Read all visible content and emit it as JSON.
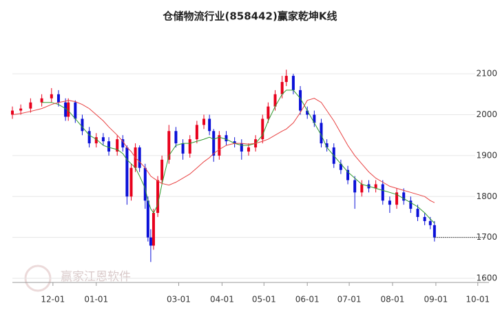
{
  "chart_data": {
    "type": "candlestick",
    "title": "仓储物流行业(858442)赢家乾坤K线",
    "watermark": "赢家江恩软件",
    "xlim": [
      1,
      342
    ],
    "xticks": [
      {
        "value": 30,
        "label": "12-01"
      },
      {
        "value": 61,
        "label": "01-01"
      },
      {
        "value": 120,
        "label": "03-01"
      },
      {
        "value": 151,
        "label": "04-01"
      },
      {
        "value": 181,
        "label": "05-01"
      },
      {
        "value": 212,
        "label": "06-01"
      },
      {
        "value": 242,
        "label": "07-01"
      },
      {
        "value": 273,
        "label": "08-01"
      },
      {
        "value": 304,
        "label": "09-01"
      },
      {
        "value": 334,
        "label": "10-01"
      }
    ],
    "ylim": [
      1590,
      2213
    ],
    "yticks": [
      1600,
      1700,
      1800,
      1900,
      2000,
      2100
    ],
    "grid": true,
    "up_color": "#e8001c",
    "down_color": "#0a10d8",
    "x": [
      1,
      7,
      14,
      22,
      29,
      34,
      39,
      41,
      46,
      51,
      56,
      61,
      66,
      70,
      76,
      80,
      83,
      86,
      89,
      92,
      96,
      98,
      100,
      102,
      105,
      108,
      113,
      118,
      123,
      128,
      133,
      138,
      142,
      145,
      149,
      154,
      160,
      165,
      170,
      175,
      180,
      184,
      189,
      194,
      197,
      202,
      207,
      212,
      217,
      222,
      226,
      231,
      236,
      241,
      246,
      251,
      256,
      261,
      266,
      271,
      276,
      281,
      286,
      291,
      296,
      300,
      303
    ],
    "open": [
      2000,
      2010,
      2015,
      2030,
      2040,
      2050,
      2030,
      1995,
      2030,
      1990,
      1960,
      1930,
      1945,
      1935,
      1910,
      1940,
      1920,
      1800,
      1870,
      1920,
      1870,
      1790,
      1700,
      1680,
      1760,
      1840,
      1890,
      1960,
      1930,
      1905,
      1940,
      1975,
      1990,
      1960,
      1900,
      1950,
      1935,
      1930,
      1910,
      1920,
      1940,
      1990,
      2020,
      2050,
      2080,
      2095,
      2060,
      2010,
      2000,
      1980,
      1930,
      1920,
      1880,
      1865,
      1840,
      1810,
      1830,
      1820,
      1830,
      1790,
      1780,
      1810,
      1790,
      1770,
      1750,
      1740,
      1730
    ],
    "high": [
      2020,
      2025,
      2040,
      2050,
      2065,
      2060,
      2040,
      2040,
      2035,
      2000,
      1970,
      1955,
      1955,
      1945,
      1950,
      1950,
      1925,
      1880,
      1930,
      1925,
      1880,
      1800,
      1720,
      1770,
      1850,
      1900,
      1975,
      1970,
      1940,
      1950,
      1985,
      2000,
      2000,
      1965,
      1960,
      1960,
      1945,
      1940,
      1930,
      1950,
      2000,
      2030,
      2060,
      2095,
      2110,
      2100,
      2070,
      2020,
      2010,
      1990,
      1940,
      1930,
      1890,
      1875,
      1850,
      1840,
      1840,
      1840,
      1840,
      1800,
      1820,
      1820,
      1800,
      1780,
      1760,
      1750,
      1740
    ],
    "low": [
      1990,
      2000,
      2005,
      2020,
      2030,
      2020,
      1985,
      1985,
      1980,
      1950,
      1920,
      1920,
      1925,
      1900,
      1900,
      1910,
      1780,
      1790,
      1860,
      1860,
      1770,
      1690,
      1640,
      1670,
      1750,
      1830,
      1880,
      1920,
      1890,
      1895,
      1930,
      1965,
      1950,
      1885,
      1890,
      1925,
      1920,
      1890,
      1900,
      1910,
      1930,
      1980,
      2010,
      2040,
      2070,
      2050,
      2000,
      1990,
      1970,
      1920,
      1910,
      1870,
      1855,
      1830,
      1770,
      1800,
      1810,
      1810,
      1780,
      1760,
      1770,
      1780,
      1760,
      1740,
      1730,
      1720,
      1690
    ],
    "close": [
      2010,
      2015,
      2030,
      2040,
      2050,
      2030,
      1995,
      2030,
      1990,
      1960,
      1930,
      1945,
      1935,
      1910,
      1940,
      1920,
      1800,
      1870,
      1920,
      1870,
      1790,
      1700,
      1680,
      1760,
      1840,
      1890,
      1960,
      1930,
      1905,
      1940,
      1975,
      1990,
      1960,
      1900,
      1950,
      1935,
      1930,
      1910,
      1920,
      1940,
      1990,
      2020,
      2050,
      2080,
      2095,
      2060,
      2010,
      2000,
      1980,
      1930,
      1920,
      1880,
      1865,
      1840,
      1810,
      1830,
      1820,
      1830,
      1790,
      1780,
      1810,
      1790,
      1770,
      1750,
      1740,
      1730,
      1700
    ],
    "series": [
      {
        "color": "#2e9a2e",
        "values": [
          null,
          null,
          null,
          2030,
          2030,
          2025,
          2015,
          2010,
          1990,
          1970,
          1950,
          1940,
          1925,
          1920,
          1915,
          1905,
          1890,
          1880,
          1870,
          1850,
          1820,
          1790,
          1770,
          1760,
          1780,
          1830,
          1900,
          1925,
          1930,
          1930,
          1935,
          1940,
          1945,
          1940,
          1945,
          1940,
          1930,
          1925,
          1925,
          1930,
          1950,
          1985,
          2020,
          2050,
          2060,
          2060,
          2040,
          2010,
          1980,
          1950,
          1920,
          1900,
          1880,
          1860,
          1845,
          1830,
          1825,
          1820,
          1815,
          1810,
          1805,
          1795,
          1785,
          1775,
          1760,
          1745,
          1735
        ]
      },
      {
        "color": "#e84040",
        "values": [
          2000,
          2003,
          2008,
          2015,
          2025,
          2030,
          2033,
          2035,
          2032,
          2025,
          2015,
          2000,
          1985,
          1970,
          1950,
          1935,
          1920,
          1910,
          1895,
          1885,
          1870,
          1860,
          1850,
          1845,
          1838,
          1832,
          1828,
          1835,
          1845,
          1855,
          1870,
          1885,
          1895,
          1905,
          1915,
          1925,
          1930,
          1930,
          1928,
          1930,
          1935,
          1940,
          1950,
          1960,
          1965,
          1980,
          2005,
          2035,
          2040,
          2030,
          2010,
          1985,
          1955,
          1925,
          1900,
          1880,
          1860,
          1845,
          1835,
          1825,
          1820,
          1815,
          1810,
          1805,
          1800,
          1790,
          1785
        ]
      }
    ]
  }
}
